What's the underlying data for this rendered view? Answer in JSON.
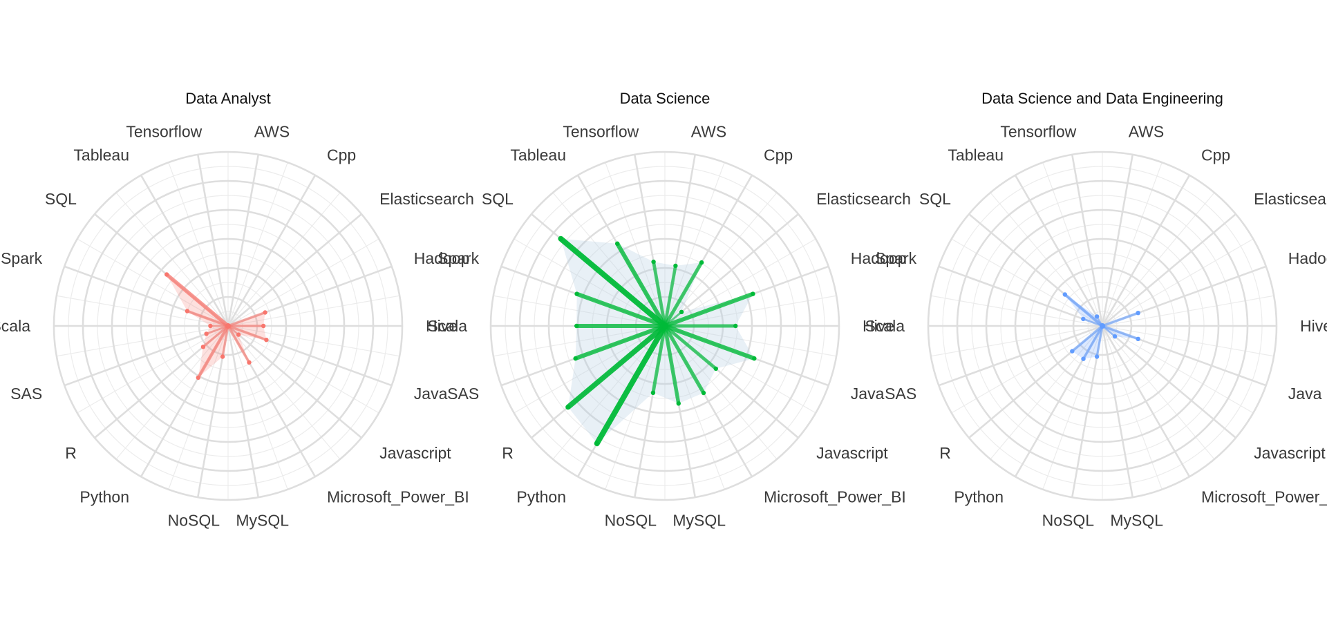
{
  "chart_data": [
    {
      "type": "radar",
      "title": "Data Analyst",
      "color": "#F8766D",
      "categories": [
        "AWS",
        "Cpp",
        "Elasticsearch",
        "Hadoop",
        "Hive",
        "Java",
        "Javascript",
        "Microsoft_Power_BI",
        "MySQL",
        "NoSQL",
        "Python",
        "R",
        "SAS",
        "Scala",
        "Spark",
        "SQL",
        "Tableau",
        "Tensorflow"
      ],
      "values": [
        0,
        0,
        0,
        0.29,
        0.26,
        0.3,
        0.1,
        0.31,
        0,
        0.23,
        0.44,
        0.24,
        0.17,
        0.13,
        0.32,
        0.59,
        0,
        0
      ],
      "rlim": [
        0,
        1
      ],
      "grid": true
    },
    {
      "type": "radar",
      "title": "Data Science",
      "color": "#00BA38",
      "categories": [
        "AWS",
        "Cpp",
        "Elasticsearch",
        "Hadoop",
        "Hive",
        "Java",
        "Javascript",
        "Microsoft_Power_BI",
        "MySQL",
        "NoSQL",
        "Python",
        "R",
        "SAS",
        "Scala",
        "Spark",
        "SQL",
        "Tableau",
        "Tensorflow"
      ],
      "values": [
        0.45,
        0.54,
        0.16,
        0.69,
        0.52,
        0.7,
        0.49,
        0.57,
        0.58,
        0.5,
        1.0,
        0.93,
        0.7,
        0.65,
        0.69,
        1.0,
        0.7,
        0.48
      ],
      "rlim": [
        0,
        1
      ],
      "grid": true
    },
    {
      "type": "radar",
      "title": "Data Science and Data Engineering",
      "color": "#619CFF",
      "categories": [
        "AWS",
        "Cpp",
        "Elasticsearch",
        "Hadoop",
        "Hive",
        "Java",
        "Javascript",
        "Microsoft_Power_BI",
        "MySQL",
        "NoSQL",
        "Python",
        "R",
        "SAS",
        "Scala",
        "Spark",
        "SQL",
        "Tableau",
        "Tensorflow"
      ],
      "values": [
        0,
        0,
        0,
        0.28,
        0,
        0.28,
        0.12,
        0,
        0,
        0.23,
        0.28,
        0.29,
        0,
        0,
        0.15,
        0.36,
        0.08,
        0
      ],
      "rlim": [
        0,
        1
      ],
      "grid": true
    }
  ]
}
